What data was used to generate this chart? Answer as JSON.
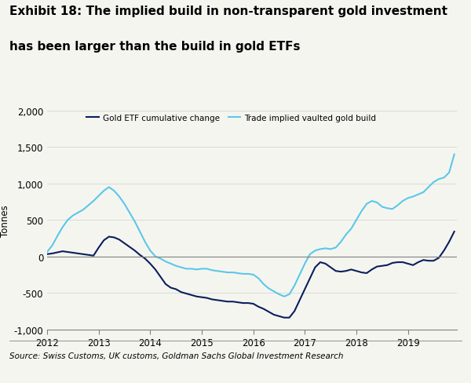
{
  "title_line1": "Exhibit 18: The implied build in non-transparent gold investment",
  "title_line2": "has been larger than the build in gold ETFs",
  "ylabel": "Tonnes",
  "source": "Source: Swiss Customs, UK customs, Goldman Sachs Global Investment Research",
  "ylim": [
    -1000,
    2000
  ],
  "yticks": [
    -1000,
    -500,
    0,
    500,
    1000,
    1500,
    2000
  ],
  "legend1": "Gold ETF cumulative change",
  "legend2": "Trade implied vaulted gold build",
  "color_etf": "#0a1f5c",
  "color_trade": "#5bc8e8",
  "background_color": "#f5f5f0",
  "etf_x": [
    2012.0,
    2012.1,
    2012.2,
    2012.3,
    2012.4,
    2012.5,
    2012.6,
    2012.7,
    2012.8,
    2012.9,
    2013.0,
    2013.1,
    2013.2,
    2013.3,
    2013.4,
    2013.5,
    2013.6,
    2013.7,
    2013.8,
    2013.9,
    2014.0,
    2014.1,
    2014.2,
    2014.3,
    2014.4,
    2014.5,
    2014.6,
    2014.7,
    2014.8,
    2014.9,
    2015.0,
    2015.1,
    2015.2,
    2015.3,
    2015.4,
    2015.5,
    2015.6,
    2015.7,
    2015.8,
    2015.9,
    2016.0,
    2016.1,
    2016.2,
    2016.3,
    2016.4,
    2016.5,
    2016.6,
    2016.7,
    2016.8,
    2016.9,
    2017.0,
    2017.1,
    2017.2,
    2017.3,
    2017.4,
    2017.5,
    2017.6,
    2017.7,
    2017.8,
    2017.9,
    2018.0,
    2018.1,
    2018.2,
    2018.3,
    2018.4,
    2018.5,
    2018.6,
    2018.7,
    2018.8,
    2018.9,
    2019.0,
    2019.1,
    2019.2,
    2019.3,
    2019.4,
    2019.5,
    2019.6,
    2019.7,
    2019.8,
    2019.9
  ],
  "etf_y": [
    30,
    40,
    55,
    70,
    60,
    50,
    40,
    30,
    20,
    10,
    120,
    220,
    270,
    260,
    230,
    180,
    130,
    80,
    20,
    -30,
    -100,
    -180,
    -280,
    -380,
    -430,
    -450,
    -490,
    -510,
    -530,
    -550,
    -560,
    -570,
    -590,
    -600,
    -610,
    -620,
    -620,
    -630,
    -640,
    -640,
    -650,
    -690,
    -720,
    -760,
    -800,
    -820,
    -840,
    -840,
    -750,
    -600,
    -450,
    -300,
    -150,
    -80,
    -100,
    -150,
    -200,
    -210,
    -200,
    -180,
    -200,
    -220,
    -230,
    -180,
    -140,
    -130,
    -120,
    -90,
    -80,
    -80,
    -100,
    -120,
    -80,
    -50,
    -60,
    -60,
    -20,
    80,
    200,
    340
  ],
  "trade_x": [
    2012.0,
    2012.1,
    2012.2,
    2012.3,
    2012.4,
    2012.5,
    2012.6,
    2012.7,
    2012.8,
    2012.9,
    2013.0,
    2013.1,
    2013.2,
    2013.3,
    2013.4,
    2013.5,
    2013.6,
    2013.7,
    2013.8,
    2013.9,
    2014.0,
    2014.1,
    2014.2,
    2014.3,
    2014.4,
    2014.5,
    2014.6,
    2014.7,
    2014.8,
    2014.9,
    2015.0,
    2015.1,
    2015.2,
    2015.3,
    2015.4,
    2015.5,
    2015.6,
    2015.7,
    2015.8,
    2015.9,
    2016.0,
    2016.1,
    2016.2,
    2016.3,
    2016.4,
    2016.5,
    2016.6,
    2016.7,
    2016.8,
    2016.9,
    2017.0,
    2017.1,
    2017.2,
    2017.3,
    2017.4,
    2017.5,
    2017.6,
    2017.7,
    2017.8,
    2017.9,
    2018.0,
    2018.1,
    2018.2,
    2018.3,
    2018.4,
    2018.5,
    2018.6,
    2018.7,
    2018.8,
    2018.9,
    2019.0,
    2019.1,
    2019.2,
    2019.3,
    2019.4,
    2019.5,
    2019.6,
    2019.7,
    2019.8,
    2019.9
  ],
  "trade_y": [
    60,
    150,
    280,
    400,
    500,
    560,
    600,
    640,
    700,
    760,
    830,
    900,
    950,
    900,
    820,
    720,
    600,
    480,
    340,
    200,
    80,
    0,
    -30,
    -70,
    -100,
    -130,
    -150,
    -170,
    -170,
    -180,
    -170,
    -170,
    -190,
    -200,
    -210,
    -220,
    -220,
    -230,
    -240,
    -240,
    -250,
    -300,
    -380,
    -440,
    -480,
    -520,
    -550,
    -520,
    -400,
    -250,
    -100,
    30,
    80,
    100,
    110,
    100,
    120,
    200,
    300,
    380,
    500,
    620,
    720,
    760,
    740,
    680,
    660,
    650,
    700,
    760,
    800,
    820,
    850,
    880,
    950,
    1020,
    1060,
    1080,
    1150,
    1400
  ]
}
